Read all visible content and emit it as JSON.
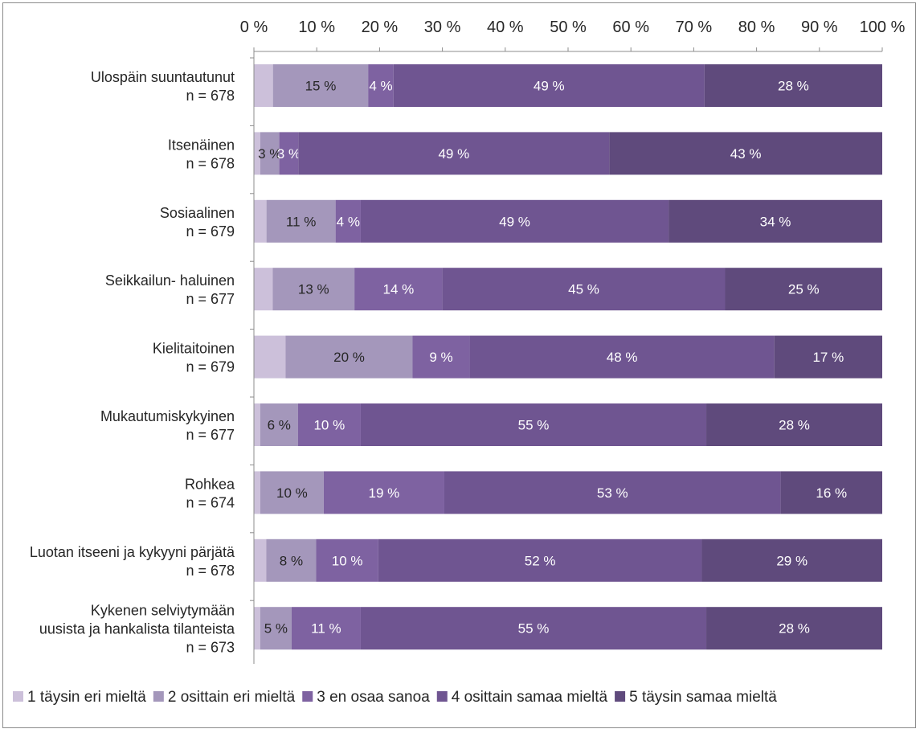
{
  "chart_data": {
    "type": "bar",
    "orientation": "horizontal",
    "stacked": "100%",
    "title": "",
    "xlabel": "",
    "ylabel": "",
    "xlim": [
      0,
      100
    ],
    "x_ticks": [
      "0 %",
      "10 %",
      "20 %",
      "30 %",
      "40 %",
      "50 %",
      "60 %",
      "70 %",
      "80 %",
      "90 %",
      "100 %"
    ],
    "x_axis_position": "top",
    "grid": false,
    "legend_position": "bottom",
    "categories": [
      [
        "Ulospäin suuntautunut",
        "n = 678"
      ],
      [
        "Itsenäinen",
        "n = 678"
      ],
      [
        "Sosiaalinen",
        "n = 679"
      ],
      [
        "Seikkailun- haluinen",
        "n = 677"
      ],
      [
        "Kielitaitoinen",
        "n = 679"
      ],
      [
        "Mukautumiskykyinen",
        "n = 677"
      ],
      [
        "Rohkea",
        "n = 674"
      ],
      [
        "Luotan itseeni ja kykyyni pärjätä",
        "n = 678"
      ],
      [
        "Kykenen selviytymään",
        "uusista ja hankalista tilanteista",
        "n = 673"
      ]
    ],
    "series": [
      {
        "name": "1 täysin eri mieltä",
        "color": "#ccc0da",
        "values": [
          3,
          1,
          2,
          3,
          5,
          1,
          1,
          2,
          1
        ],
        "labels": [
          "",
          "",
          "",
          "",
          "",
          "",
          "",
          "",
          ""
        ]
      },
      {
        "name": "2 osittain eri mieltä",
        "color": "#a497bb",
        "values": [
          15,
          3,
          11,
          13,
          20,
          6,
          10,
          8,
          5
        ],
        "labels": [
          "15 %",
          "3 %",
          "11 %",
          "13 %",
          "20 %",
          "6 %",
          "10 %",
          "8 %",
          "5 %"
        ]
      },
      {
        "name": "3 en osaa sanoa",
        "color": "#7e62a1",
        "values": [
          4,
          3,
          4,
          14,
          9,
          10,
          19,
          10,
          11
        ],
        "labels": [
          "4 %",
          "3 %",
          "4 %",
          "14 %",
          "9 %",
          "10 %",
          "19 %",
          "10 %",
          "11 %"
        ]
      },
      {
        "name": "4 osittain samaa mieltä",
        "color": "#6f5591",
        "values": [
          49,
          49,
          49,
          45,
          48,
          55,
          53,
          52,
          55
        ],
        "labels": [
          "49 %",
          "49 %",
          "49 %",
          "45 %",
          "48 %",
          "55 %",
          "53 %",
          "52 %",
          "55 %"
        ]
      },
      {
        "name": "5 täysin samaa mieltä",
        "color": "#5f4a7c",
        "values": [
          28,
          43,
          34,
          25,
          17,
          28,
          16,
          29,
          28
        ],
        "labels": [
          "28 %",
          "43 %",
          "34 %",
          "25 %",
          "17 %",
          "28 %",
          "16 %",
          "29 %",
          "28 %"
        ]
      }
    ]
  }
}
